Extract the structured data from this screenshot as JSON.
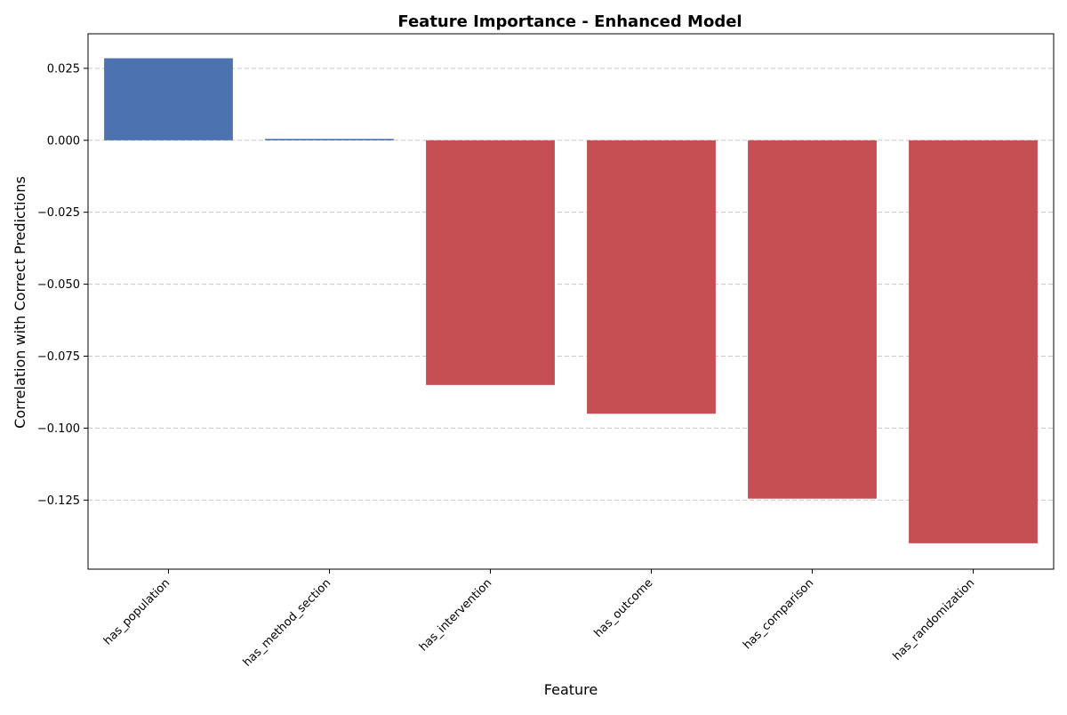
{
  "chart_data": {
    "type": "bar",
    "title": "Feature Importance - Enhanced Model",
    "xlabel": "Feature",
    "ylabel": "Correlation with Correct Predictions",
    "categories": [
      "has_population",
      "has_method_section",
      "has_intervention",
      "has_outcome",
      "has_comparison",
      "has_randomization"
    ],
    "values": [
      0.0285,
      0.0005,
      -0.085,
      -0.095,
      -0.1245,
      -0.14
    ],
    "ylim": [
      -0.149,
      0.037
    ],
    "yticks": [
      0.025,
      0.0,
      -0.025,
      -0.05,
      -0.075,
      -0.1,
      -0.125
    ],
    "ytick_labels": [
      "0.025",
      "0.000",
      "−0.025",
      "−0.050",
      "−0.075",
      "−0.100",
      "−0.125"
    ],
    "grid": true,
    "grid_axis": "y",
    "colors": {
      "positive": "#4c72b0",
      "negative": "#c44e52"
    }
  }
}
